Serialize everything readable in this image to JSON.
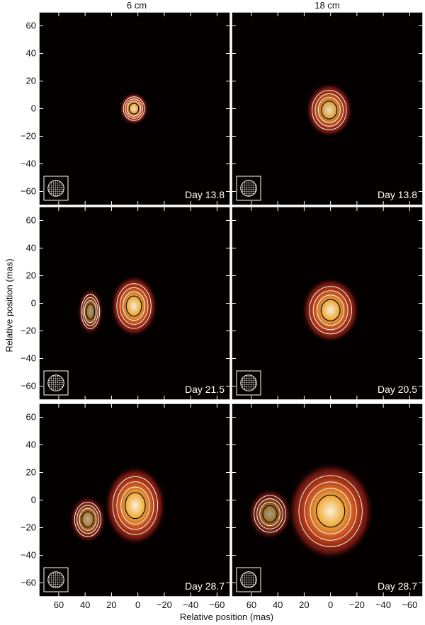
{
  "figure": {
    "columns": [
      "6 cm",
      "18 cm"
    ],
    "ylabel": "Relative position (mas)",
    "xlabel": "Relative position (mas)"
  },
  "chart_data": {
    "type": "heatmap",
    "description_note": "Grid of 6 radio intensity maps with contour overlays; 2 columns (wavelength) x 3 rows (epoch).",
    "xlabel": "Relative position (mas)",
    "ylabel": "Relative position (mas)",
    "xlim": [
      75,
      -70
    ],
    "ylim": [
      -70,
      70
    ],
    "xticks": [
      60,
      40,
      20,
      0,
      -20,
      -40,
      -60
    ],
    "yticks": [
      60,
      40,
      20,
      0,
      -20,
      -40,
      -60
    ],
    "colors": {
      "background": "#050000",
      "core": "#fff6dc",
      "mid": "#f0a030",
      "outer": "#8a1a10",
      "contour": "#ffffff"
    },
    "panels": [
      {
        "id": "6cm-13.8",
        "wavelength": "6 cm",
        "label": "Day 13.8",
        "blobs": [
          {
            "x": 3,
            "y": 0,
            "rx": 8,
            "ry": 9,
            "peak": 0.9
          }
        ]
      },
      {
        "id": "18cm-13.8",
        "wavelength": "18 cm",
        "label": "Day 13.8",
        "blobs": [
          {
            "x": 1,
            "y": -1,
            "rx": 13,
            "ry": 15,
            "peak": 0.85
          }
        ]
      },
      {
        "id": "6cm-21.5",
        "wavelength": "6 cm",
        "label": "Day 21.5",
        "blobs": [
          {
            "x": 36,
            "y": -6,
            "rx": 7,
            "ry": 13,
            "peak": 0.45
          },
          {
            "x": 3,
            "y": -2,
            "rx": 13,
            "ry": 17,
            "peak": 0.95
          }
        ]
      },
      {
        "id": "18cm-20.5",
        "wavelength": "18 cm",
        "label": "Day 20.5",
        "blobs": [
          {
            "x": 0,
            "y": -5,
            "rx": 16,
            "ry": 18,
            "peak": 0.95
          }
        ]
      },
      {
        "id": "6cm-28.7",
        "wavelength": "6 cm",
        "label": "Day 28.7",
        "blobs": [
          {
            "x": 38,
            "y": -14,
            "rx": 10,
            "ry": 13,
            "peak": 0.55
          },
          {
            "x": 2,
            "y": -4,
            "rx": 17,
            "ry": 22,
            "peak": 0.97
          }
        ]
      },
      {
        "id": "18cm-28.7",
        "wavelength": "18 cm",
        "label": "Day 28.7",
        "blobs": [
          {
            "x": 46,
            "y": -10,
            "rx": 12,
            "ry": 14,
            "peak": 0.45
          },
          {
            "x": 0,
            "y": -8,
            "rx": 24,
            "ry": 27,
            "peak": 0.97
          }
        ]
      }
    ]
  }
}
